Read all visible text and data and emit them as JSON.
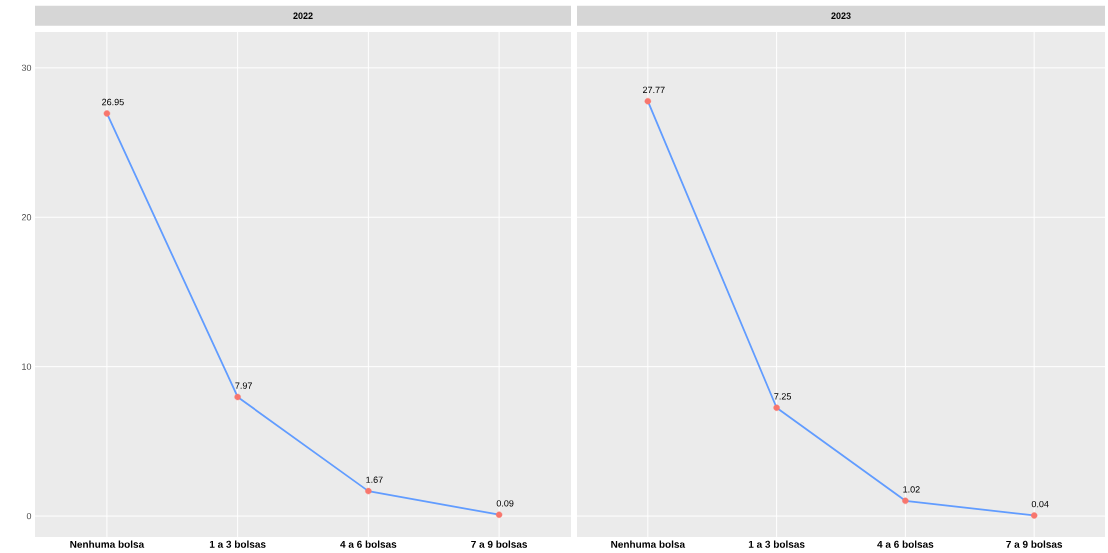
{
  "chart_data": [
    {
      "type": "line",
      "title": "2022",
      "categories": [
        "Nenhuma bolsa",
        "1 a 3 bolsas",
        "4 a 6 bolsas",
        "7 a 9 bolsas"
      ],
      "series": [
        {
          "color": "#619cff",
          "colors": [
            "#f8766d",
            "#f8766d",
            "#f8766d",
            "#f8766d"
          ],
          "values": [
            26.95,
            7.97,
            1.67,
            0.09
          ],
          "marker": "circle"
        }
      ],
      "ylim": [
        -1.4,
        32.4
      ],
      "yticks": [
        0,
        10,
        20,
        30
      ],
      "grid": true,
      "data_labels": true
    },
    {
      "type": "line",
      "title": "2023",
      "categories": [
        "Nenhuma bolsa",
        "1 a 3 bolsas",
        "4 a 6 bolsas",
        "7 a 9 bolsas"
      ],
      "series": [
        {
          "color": "#619cff",
          "colors": [
            "#f8766d",
            "#f8766d",
            "#f8766d",
            "#f8766d"
          ],
          "values": [
            27.77,
            7.25,
            1.02,
            0.04
          ],
          "marker": "circle"
        }
      ],
      "ylim": [
        -1.4,
        32.4
      ],
      "yticks": [
        0,
        10,
        20,
        30
      ],
      "grid": true,
      "data_labels": true,
      "tick_labels": "x"
    }
  ]
}
